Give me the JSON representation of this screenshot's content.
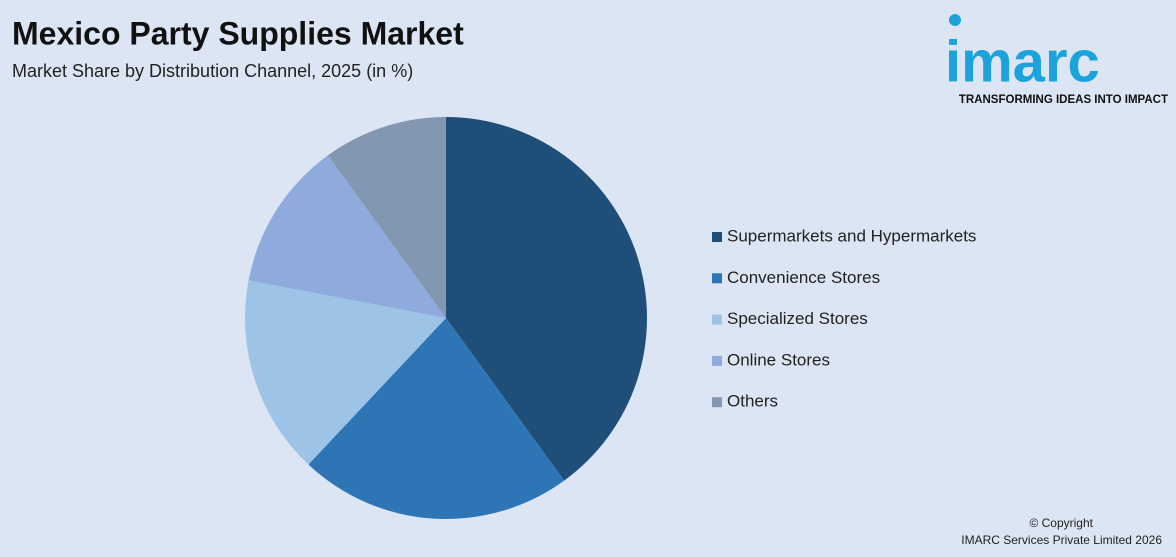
{
  "chart_data": {
    "type": "pie",
    "title": "Mexico Party Supplies Market",
    "subtitle": "Market Share by Distribution Channel, 2025 (in %)",
    "categories": [
      "Supermarkets and Hypermarkets",
      "Convenience Stores",
      "Specialized Stores",
      "Online Stores",
      "Others"
    ],
    "values": [
      40,
      22,
      16,
      12,
      10
    ],
    "colors": [
      "#1f4e79",
      "#2e75b6",
      "#9dc3e6",
      "#8faadc",
      "#8497b0"
    ]
  },
  "logo": {
    "name": "imarc",
    "tagline": "TRANSFORMING IDEAS INTO IMPACT"
  },
  "footer": {
    "copyright": "© Copyright",
    "company": "IMARC Services Private Limited 2026"
  }
}
